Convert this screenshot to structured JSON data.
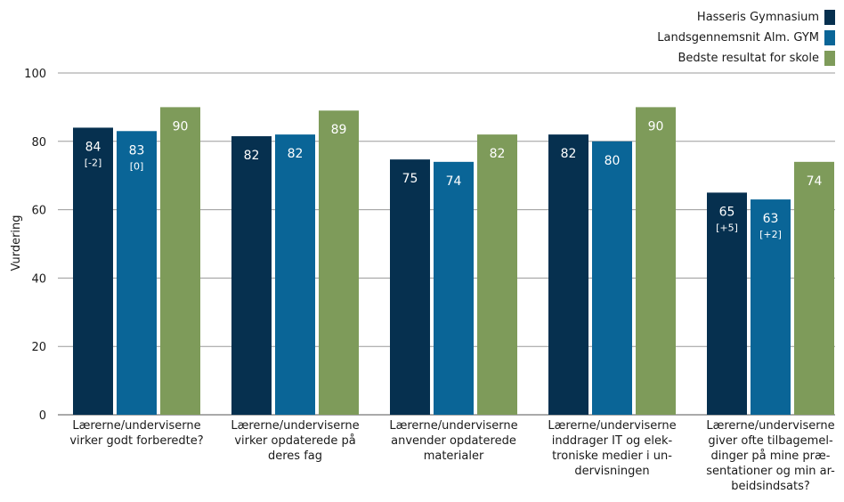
{
  "chart_data": {
    "type": "bar",
    "ylabel": "Vurdering",
    "ylim": [
      0,
      100
    ],
    "yticks": [
      0,
      20,
      40,
      60,
      80,
      100
    ],
    "grid": true,
    "legend_position": "top-right",
    "categories": [
      [
        "Lærerne/underviserne",
        "virker godt forberedte?"
      ],
      [
        "Lærerne/underviserne",
        "virker opdaterede på",
        "deres fag"
      ],
      [
        "Lærerne/underviserne",
        "anvender opdaterede",
        "materialer"
      ],
      [
        "Lærerne/underviserne",
        "inddrager IT og elek-",
        "troniske medier i un-",
        "dervisningen"
      ],
      [
        "Lærerne/underviserne",
        "giver ofte tilbagemel-",
        "dinger på mine præ-",
        "sentationer og min ar-",
        "beidsindsats?"
      ]
    ],
    "series": [
      {
        "name": "Hasseris Gymnasium",
        "color": "#06304f",
        "values": [
          84,
          81.5,
          74.7,
          82,
          65
        ],
        "labels": [
          "84",
          "82",
          "75",
          "82",
          "65"
        ],
        "diffs": [
          "[-2]",
          "",
          "",
          "",
          "[+5]"
        ]
      },
      {
        "name": "Landsgennemsnit Alm. GYM",
        "color": "#0a6597",
        "values": [
          83,
          82,
          74,
          80,
          63
        ],
        "labels": [
          "83",
          "82",
          "74",
          "80",
          "63"
        ],
        "diffs": [
          "[0]",
          "",
          "",
          "",
          "[+2]"
        ]
      },
      {
        "name": "Bedste resultat for skole",
        "color": "#7e9b5a",
        "values": [
          90,
          89,
          82,
          90,
          74
        ],
        "labels": [
          "90",
          "89",
          "82",
          "90",
          "74"
        ],
        "diffs": [
          "",
          "",
          "",
          "",
          ""
        ]
      }
    ]
  }
}
